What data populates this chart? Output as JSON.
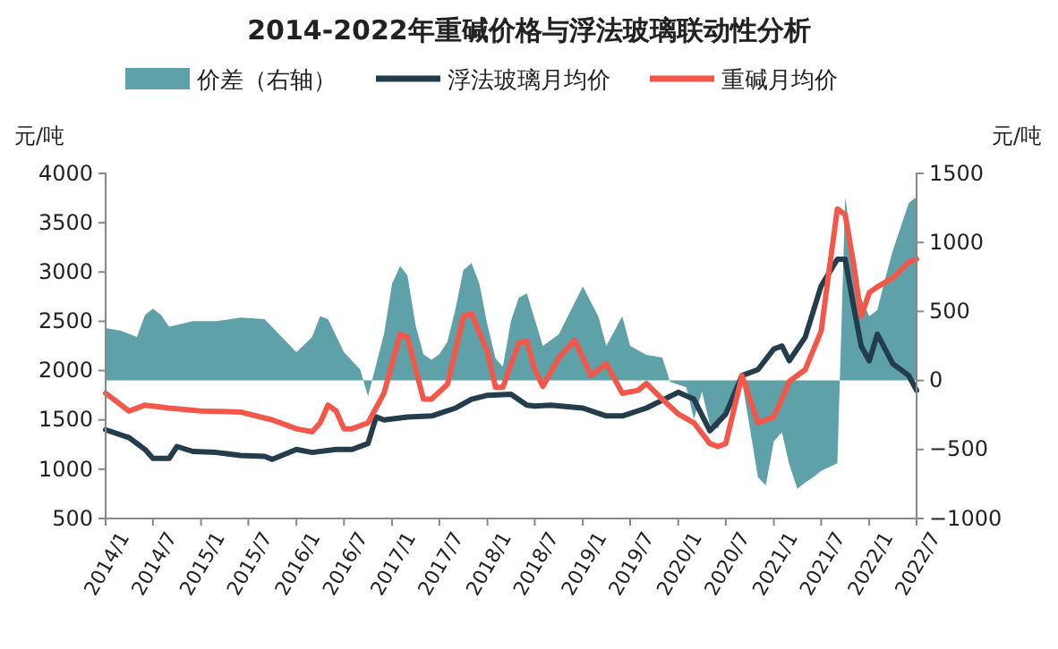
{
  "chart_data": {
    "type": "line",
    "title": "2014-2022年重碱价格与浮法玻璃联动性分析",
    "ylabel": "元/吨",
    "y2label": "元/吨",
    "xlim": [
      "2014-01",
      "2022-07"
    ],
    "xticks": [
      {
        "value": "2014-01",
        "label": "2014/1"
      },
      {
        "value": "2014-07",
        "label": "2014/7"
      },
      {
        "value": "2015-01",
        "label": "2015/1"
      },
      {
        "value": "2015-07",
        "label": "2015/7"
      },
      {
        "value": "2016-01",
        "label": "2016/1"
      },
      {
        "value": "2016-07",
        "label": "2016/7"
      },
      {
        "value": "2017-01",
        "label": "2017/1"
      },
      {
        "value": "2017-07",
        "label": "2017/7"
      },
      {
        "value": "2018-01",
        "label": "2018/1"
      },
      {
        "value": "2018-07",
        "label": "2018/7"
      },
      {
        "value": "2019-01",
        "label": "2019/1"
      },
      {
        "value": "2019-07",
        "label": "2019/7"
      },
      {
        "value": "2020-01",
        "label": "2020/1"
      },
      {
        "value": "2020-07",
        "label": "2020/7"
      },
      {
        "value": "2021-01",
        "label": "2021/1"
      },
      {
        "value": "2021-07",
        "label": "2021/7"
      },
      {
        "value": "2022-01",
        "label": "2022/1"
      },
      {
        "value": "2022-07",
        "label": "2022/7"
      }
    ],
    "ylim": [
      500,
      4000
    ],
    "yticks": [
      500,
      1000,
      1500,
      2000,
      2500,
      3000,
      3500,
      4000
    ],
    "y2lim": [
      -1000,
      1500
    ],
    "y2ticks": [
      -1000,
      -500,
      0,
      500,
      1000,
      1500
    ],
    "grid": false,
    "legend": "top",
    "marker": "none",
    "series": [
      {
        "name": "价差（右轴）",
        "type": "area",
        "axis": "y2",
        "color": "#5ea1a8",
        "x": [
          "2014-01",
          "2014-03",
          "2014-05",
          "2014-06",
          "2014-07",
          "2014-08",
          "2014-09",
          "2014-12",
          "2015-03",
          "2015-06",
          "2015-09",
          "2016-01",
          "2016-03",
          "2016-04",
          "2016-05",
          "2016-07",
          "2016-09",
          "2016-10",
          "2016-12",
          "2017-01",
          "2017-02",
          "2017-03",
          "2017-04",
          "2017-05",
          "2017-06",
          "2017-07",
          "2017-08",
          "2017-09",
          "2017-10",
          "2017-11",
          "2017-12",
          "2018-01",
          "2018-02",
          "2018-03",
          "2018-04",
          "2018-05",
          "2018-06",
          "2018-08",
          "2018-10",
          "2019-01",
          "2019-03",
          "2019-04",
          "2019-06",
          "2019-07",
          "2019-09",
          "2019-11",
          "2019-12",
          "2020-02",
          "2020-03",
          "2020-04",
          "2020-05",
          "2020-06",
          "2020-07",
          "2020-08",
          "2020-09",
          "2020-11",
          "2020-12",
          "2021-01",
          "2021-02",
          "2021-03",
          "2021-04",
          "2021-05",
          "2021-06",
          "2021-07",
          "2021-09",
          "2021-10",
          "2021-11",
          "2021-12",
          "2022-01",
          "2022-02",
          "2022-03",
          "2022-04",
          "2022-05",
          "2022-06",
          "2022-07"
        ],
        "values": [
          380,
          360,
          315,
          475,
          520,
          475,
          390,
          430,
          430,
          455,
          445,
          205,
          315,
          465,
          445,
          205,
          80,
          -115,
          335,
          700,
          830,
          760,
          400,
          190,
          150,
          190,
          280,
          520,
          800,
          850,
          700,
          400,
          160,
          100,
          430,
          600,
          630,
          250,
          335,
          680,
          465,
          250,
          465,
          250,
          185,
          165,
          -10,
          -50,
          -280,
          -80,
          -320,
          -350,
          -200,
          -100,
          0,
          -700,
          -760,
          -440,
          -375,
          -610,
          -785,
          -740,
          -700,
          -655,
          -600,
          1330,
          900,
          595,
          465,
          510,
          725,
          940,
          1110,
          1285,
          1330
        ]
      },
      {
        "name": "浮法玻璃月均价",
        "color": "#243d4c",
        "x": [
          "2014-01",
          "2014-04",
          "2014-06",
          "2014-07",
          "2014-09",
          "2014-10",
          "2014-12",
          "2015-03",
          "2015-06",
          "2015-09",
          "2015-10",
          "2016-01",
          "2016-03",
          "2016-06",
          "2016-08",
          "2016-10",
          "2016-11",
          "2016-12",
          "2017-03",
          "2017-06",
          "2017-09",
          "2017-11",
          "2018-01",
          "2018-04",
          "2018-06",
          "2018-07",
          "2018-09",
          "2019-01",
          "2019-04",
          "2019-06",
          "2019-09",
          "2020-01",
          "2020-03",
          "2020-05",
          "2020-07",
          "2020-09",
          "2020-11",
          "2021-01",
          "2021-02",
          "2021-03",
          "2021-05",
          "2021-07",
          "2021-09",
          "2021-10",
          "2021-11",
          "2021-12",
          "2022-01",
          "2022-02",
          "2022-04",
          "2022-06",
          "2022-07"
        ],
        "values": [
          1400,
          1320,
          1200,
          1110,
          1110,
          1230,
          1180,
          1170,
          1140,
          1130,
          1100,
          1200,
          1170,
          1200,
          1200,
          1260,
          1530,
          1500,
          1530,
          1540,
          1620,
          1710,
          1750,
          1760,
          1650,
          1640,
          1650,
          1620,
          1540,
          1540,
          1620,
          1780,
          1710,
          1390,
          1560,
          1950,
          2010,
          2220,
          2250,
          2100,
          2340,
          2860,
          3130,
          3130,
          2670,
          2250,
          2100,
          2370,
          2070,
          1950,
          1800
        ]
      },
      {
        "name": "重碱月均价",
        "color": "#f2574a",
        "x": [
          "2014-01",
          "2014-04",
          "2014-06",
          "2014-09",
          "2015-01",
          "2015-06",
          "2015-10",
          "2016-01",
          "2016-03",
          "2016-04",
          "2016-05",
          "2016-06",
          "2016-07",
          "2016-08",
          "2016-10",
          "2016-12",
          "2017-02",
          "2017-03",
          "2017-05",
          "2017-06",
          "2017-08",
          "2017-10",
          "2017-11",
          "2018-01",
          "2018-02",
          "2018-03",
          "2018-05",
          "2018-06",
          "2018-07",
          "2018-08",
          "2018-10",
          "2018-12",
          "2019-02",
          "2019-04",
          "2019-06",
          "2019-08",
          "2019-09",
          "2019-11",
          "2020-01",
          "2020-03",
          "2020-05",
          "2020-06",
          "2020-07",
          "2020-09",
          "2020-11",
          "2021-01",
          "2021-03",
          "2021-05",
          "2021-07",
          "2021-08",
          "2021-09",
          "2021-10",
          "2021-11",
          "2021-12",
          "2022-01",
          "2022-02",
          "2022-04",
          "2022-06",
          "2022-07"
        ],
        "values": [
          1770,
          1590,
          1650,
          1620,
          1590,
          1580,
          1500,
          1410,
          1380,
          1470,
          1650,
          1590,
          1410,
          1410,
          1470,
          1770,
          2370,
          2340,
          1710,
          1710,
          1860,
          2550,
          2580,
          2190,
          1830,
          1830,
          2280,
          2300,
          2010,
          1840,
          2130,
          2310,
          1950,
          2070,
          1770,
          1800,
          1870,
          1710,
          1560,
          1470,
          1260,
          1230,
          1260,
          1950,
          1470,
          1530,
          1890,
          2010,
          2400,
          3030,
          3640,
          3580,
          3100,
          2550,
          2790,
          2850,
          2940,
          3100,
          3130
        ]
      }
    ]
  }
}
